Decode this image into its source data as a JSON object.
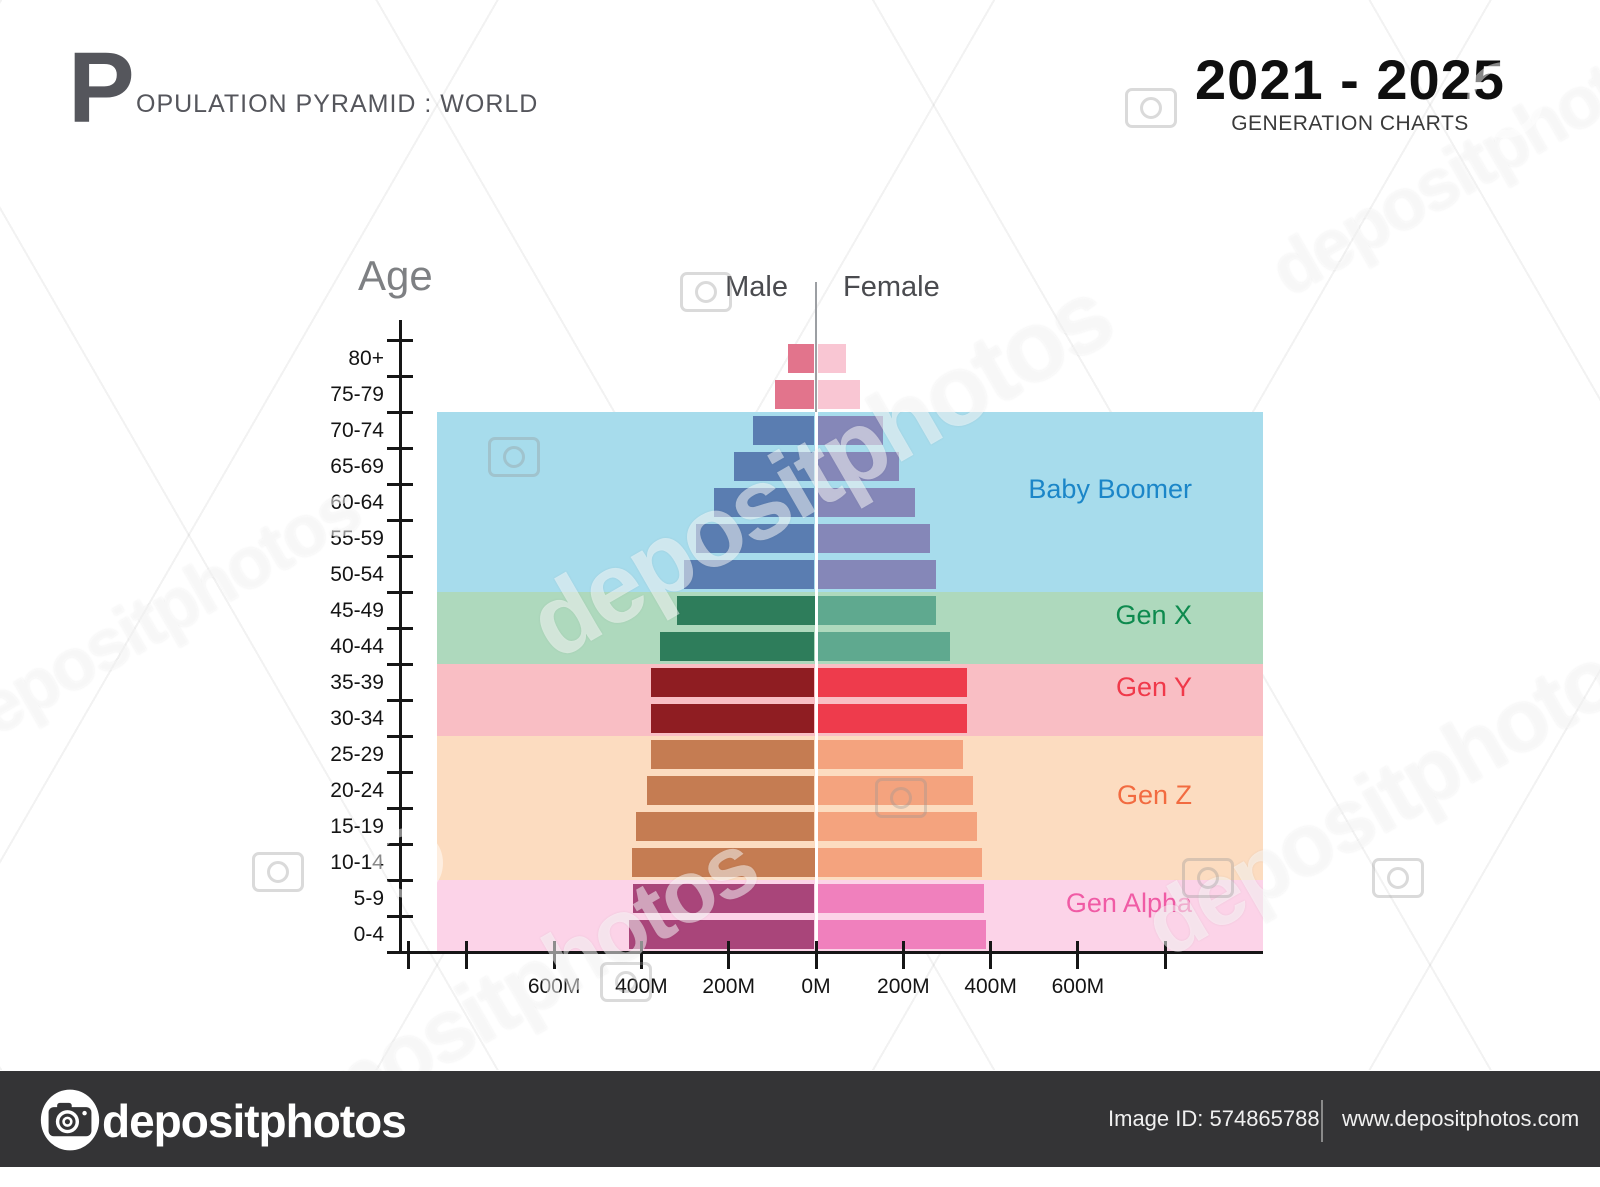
{
  "header": {
    "title_initial": "P",
    "title_rest": "OPULATION PYRAMID : WORLD",
    "period": "2021 - 2025",
    "subtitle": "GENERATION CHARTS"
  },
  "chart": {
    "age_axis_label": "Age",
    "male_label": "Male",
    "female_label": "Female"
  },
  "chart_data": {
    "type": "bar",
    "variant": "population-pyramid",
    "title": "Population Pyramid : World",
    "period": "2021 - 2025",
    "unit": "millions of people (values estimated from bar lengths)",
    "categories_top_to_bottom": [
      "80+",
      "75-79",
      "70-74",
      "65-69",
      "60-64",
      "55-59",
      "50-54",
      "45-49",
      "40-44",
      "35-39",
      "30-34",
      "25-29",
      "20-24",
      "15-19",
      "10-14",
      "5-9",
      "0-4"
    ],
    "series": [
      {
        "name": "Male",
        "side": "left",
        "values": [
          60,
          90,
          140,
          185,
          230,
          272,
          298,
          315,
          353,
          375,
          375,
          374,
          384,
          408,
          418,
          415,
          424
        ]
      },
      {
        "name": "Female",
        "side": "right",
        "values": [
          65,
          97,
          150,
          186,
          224,
          258,
          272,
          272,
          304,
          343,
          343,
          333,
          355,
          365,
          377,
          381,
          386
        ]
      }
    ],
    "x_axis": {
      "tick_labels": [
        "600M",
        "400M",
        "200M",
        "0M",
        "200M",
        "400M",
        "600M"
      ],
      "tick_step_millions": 200,
      "max_each_side_millions": 800
    },
    "y_axis_label": "Age",
    "grid": false,
    "legend_position": "none",
    "generation_bands": [
      {
        "label": "Baby Boomer",
        "ages": [
          "70-74",
          "65-69",
          "60-64",
          "55-59",
          "50-54"
        ]
      },
      {
        "label": "Gen X",
        "ages": [
          "45-49",
          "40-44"
        ]
      },
      {
        "label": "Gen Y",
        "ages": [
          "35-39",
          "30-34"
        ]
      },
      {
        "label": "Gen Z",
        "ages": [
          "25-29",
          "20-24",
          "15-19",
          "10-14"
        ]
      },
      {
        "label": "Gen Alpha",
        "ages": [
          "5-9",
          "0-4"
        ]
      }
    ]
  },
  "generations": {
    "Baby Boomer": {
      "band": "#a7dcec",
      "label_color": "#1b86c8",
      "male": "#5a7db1",
      "female": "#8587b8"
    },
    "Gen X": {
      "band": "#aed9bd",
      "label_color": "#0d8a4e",
      "male": "#2e7d5b",
      "female": "#5fa98f"
    },
    "Gen Y": {
      "band": "#f9bec4",
      "label_color": "#f0394a",
      "male": "#8f1d22",
      "female": "#ee3b4c"
    },
    "Gen Z": {
      "band": "#fcdcc0",
      "label_color": "#f26b40",
      "male": "#c57c52",
      "female": "#f4a37e"
    },
    "Gen Alpha": {
      "band": "#fcd3e8",
      "label_color": "#f05ba5",
      "male": "#a9457a",
      "female": "#f080bd"
    },
    "_pre_boomer": {
      "band": null,
      "label_color": null,
      "male": "#e2748c",
      "female": "#f9c6d3"
    }
  },
  "watermark": {
    "text": "depositphotos"
  },
  "footer": {
    "logo_text": "depositphotos",
    "image_id": "Image ID: 574865788",
    "site_url": "www.depositphotos.com"
  }
}
